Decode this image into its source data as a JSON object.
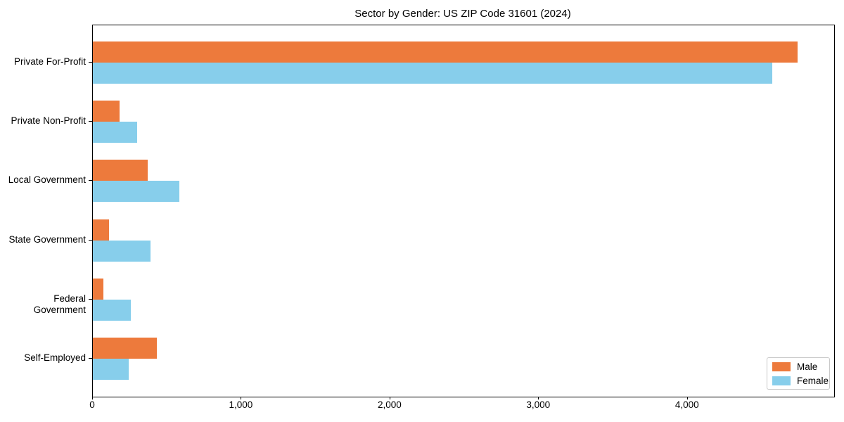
{
  "title": "Sector by Gender: US ZIP Code 31601 (2024)",
  "colors": {
    "male": "#ED7A3C",
    "female": "#87CEEB",
    "axis": "#000000",
    "legend_border": "#C8C8C8",
    "background": "#FFFFFF"
  },
  "chart_data": {
    "type": "bar",
    "orientation": "horizontal",
    "title": "Sector by Gender: US ZIP Code 31601 (2024)",
    "categories": [
      "Private For-Profit",
      "Private Non-Profit",
      "Local Government",
      "State Government",
      "Federal Government",
      "Self-Employed"
    ],
    "series": [
      {
        "name": "Male",
        "color": "#ED7A3C",
        "values": [
          4740,
          180,
          370,
          110,
          70,
          430
        ]
      },
      {
        "name": "Female",
        "color": "#87CEEB",
        "values": [
          4570,
          300,
          580,
          390,
          255,
          240
        ]
      }
    ],
    "xlabel": "",
    "ylabel": "",
    "xlim": [
      0,
      4985
    ],
    "xticks": [
      0,
      1000,
      2000,
      3000,
      4000
    ],
    "xtick_labels": [
      "0",
      "1,000",
      "2,000",
      "3,000",
      "4,000"
    ],
    "grid": false,
    "legend": {
      "position": "lower right",
      "entries": [
        "Male",
        "Female"
      ]
    }
  }
}
